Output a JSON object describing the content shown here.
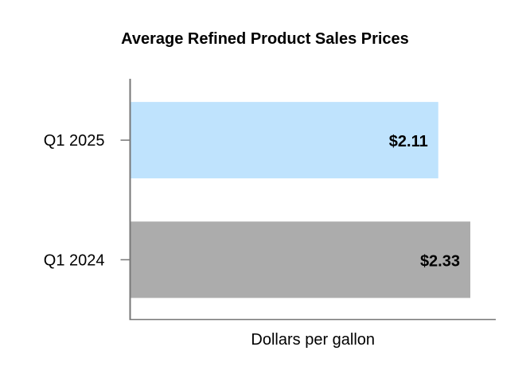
{
  "chart_data": {
    "type": "bar",
    "orientation": "horizontal",
    "title": "Average Refined Product Sales Prices",
    "xlabel": "Dollars per gallon",
    "ylabel": "",
    "categories": [
      "Q1 2025",
      "Q1 2024"
    ],
    "values": [
      2.11,
      2.33
    ],
    "data_labels": [
      "$2.11",
      "$2.33"
    ],
    "bar_colors": [
      "#bfe3fd",
      "#acacac"
    ],
    "xlim": [
      0,
      2.5
    ],
    "grid": false,
    "legend": "none"
  }
}
